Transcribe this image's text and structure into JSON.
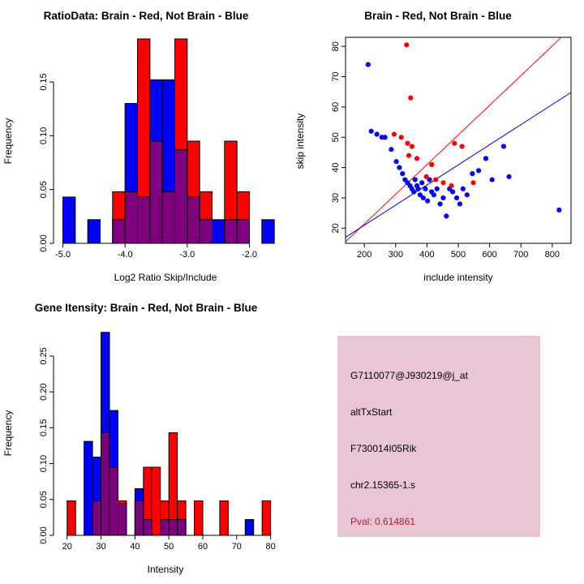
{
  "figure": {
    "background": "#FFFFFF"
  },
  "colors": {
    "red": "#FF0000",
    "blue": "#0000FF",
    "overlap": "#7F007F",
    "axis": "#000000",
    "info_bg": "#EAC5D5",
    "pval_text": "#B22222"
  },
  "info": {
    "probe_id": "G7110077@J930219@j_at",
    "event_type": "altTxStart",
    "gene_symbol": "F730014I05Rik",
    "location": "chr2.15365-1.s",
    "pval": "Pval: 0.614861"
  },
  "chart_data": [
    {
      "id": "ratio_histogram",
      "type": "bar",
      "title": "RatioData: Brain - Red, Not Brain - Blue",
      "xlabel": "Log2 Ratio Skip/Include",
      "ylabel": "Frequency",
      "xlim": [
        -5.15,
        -1.55
      ],
      "ylim": [
        0,
        0.19
      ],
      "xticks": [
        -5.0,
        -4.0,
        -3.0,
        -2.0
      ],
      "xtick_labels": [
        "-5.0",
        "-4.0",
        "-3.0",
        "-2.0"
      ],
      "yticks": [
        0,
        0.05,
        0.1,
        0.15
      ],
      "ytick_labels": [
        "0.00",
        "0.05",
        "0.10",
        "0.15"
      ],
      "bin_width": 0.2,
      "grid": false,
      "legend": "colors encoded in title",
      "series": [
        {
          "name": "Not Brain",
          "color_key": "blue",
          "bins": [
            [
              -5.0,
              0.043
            ],
            [
              -4.6,
              0.022
            ],
            [
              -4.2,
              0.022
            ],
            [
              -4.0,
              0.13
            ],
            [
              -3.8,
              0.043
            ],
            [
              -3.6,
              0.152
            ],
            [
              -3.4,
              0.152
            ],
            [
              -3.2,
              0.087
            ],
            [
              -3.0,
              0.043
            ],
            [
              -2.8,
              0.022
            ],
            [
              -2.6,
              0.022
            ],
            [
              -2.4,
              0.022
            ],
            [
              -2.2,
              0.022
            ],
            [
              -1.8,
              0.022
            ]
          ]
        },
        {
          "name": "Brain",
          "color_key": "red",
          "bins": [
            [
              -4.2,
              0.048
            ],
            [
              -4.0,
              0.048
            ],
            [
              -3.8,
              0.19
            ],
            [
              -3.6,
              0.095
            ],
            [
              -3.4,
              0.048
            ],
            [
              -3.2,
              0.19
            ],
            [
              -3.0,
              0.095
            ],
            [
              -2.8,
              0.048
            ],
            [
              -2.4,
              0.095
            ],
            [
              -2.2,
              0.048
            ]
          ]
        }
      ]
    },
    {
      "id": "intensity_scatter",
      "type": "scatter",
      "title": "Brain - Red, Not Brain - Blue",
      "xlabel": "include intensity",
      "ylabel": "skip intensity",
      "xlim": [
        140,
        860
      ],
      "ylim": [
        15,
        83
      ],
      "xticks": [
        200,
        300,
        400,
        500,
        600,
        700,
        800
      ],
      "yticks": [
        20,
        30,
        40,
        50,
        60,
        70,
        80
      ],
      "grid": false,
      "series": [
        {
          "name": "Not Brain",
          "color_key": "blue",
          "points": [
            [
              212,
              74
            ],
            [
              222,
              52
            ],
            [
              240,
              51
            ],
            [
              256,
              50
            ],
            [
              266,
              50
            ],
            [
              286,
              46
            ],
            [
              302,
              42
            ],
            [
              312,
              40
            ],
            [
              322,
              38
            ],
            [
              330,
              36
            ],
            [
              338,
              35
            ],
            [
              346,
              34
            ],
            [
              352,
              33
            ],
            [
              358,
              32
            ],
            [
              362,
              36
            ],
            [
              368,
              34
            ],
            [
              372,
              33
            ],
            [
              378,
              31
            ],
            [
              384,
              35
            ],
            [
              388,
              30
            ],
            [
              395,
              33
            ],
            [
              402,
              29
            ],
            [
              408,
              36
            ],
            [
              415,
              32
            ],
            [
              422,
              31
            ],
            [
              432,
              33
            ],
            [
              442,
              28
            ],
            [
              452,
              30
            ],
            [
              462,
              24
            ],
            [
              472,
              33
            ],
            [
              482,
              32
            ],
            [
              495,
              30
            ],
            [
              505,
              28
            ],
            [
              515,
              33
            ],
            [
              528,
              31
            ],
            [
              545,
              38
            ],
            [
              565,
              39
            ],
            [
              588,
              43
            ],
            [
              608,
              36
            ],
            [
              645,
              47
            ],
            [
              662,
              37
            ],
            [
              822,
              26
            ]
          ]
        },
        {
          "name": "Brain",
          "color_key": "red",
          "points": [
            [
              335,
              80.5
            ],
            [
              348,
              63
            ],
            [
              295,
              51
            ],
            [
              318,
              50
            ],
            [
              338,
              48
            ],
            [
              352,
              47
            ],
            [
              342,
              44
            ],
            [
              368,
              43
            ],
            [
              398,
              37
            ],
            [
              415,
              41
            ],
            [
              428,
              36
            ],
            [
              452,
              35
            ],
            [
              478,
              34
            ],
            [
              488,
              48
            ],
            [
              512,
              47
            ],
            [
              548,
              35
            ]
          ]
        }
      ],
      "lines": [
        {
          "color_key": "red",
          "x1": 140,
          "y1": 15.5,
          "x2": 829,
          "y2": 83
        },
        {
          "color_key": "blue",
          "x1": 140,
          "y1": 17.0,
          "x2": 860,
          "y2": 64.8
        }
      ]
    },
    {
      "id": "gene_intensity_histogram",
      "type": "bar",
      "title": "Gene Itensity: Brain - Red, Not Brain - Blue",
      "xlabel": "Intensity",
      "ylabel": "Frequency",
      "xlim": [
        16,
        82
      ],
      "ylim": [
        0,
        0.285
      ],
      "xticks": [
        20,
        30,
        40,
        50,
        60,
        70,
        80
      ],
      "xtick_labels": [
        "20",
        "30",
        "40",
        "50",
        "60",
        "70",
        "80"
      ],
      "yticks": [
        0,
        0.05,
        0.1,
        0.15,
        0.2,
        0.25
      ],
      "ytick_labels": [
        "0.00",
        "0.05",
        "0.10",
        "0.15",
        "0.20",
        "0.25"
      ],
      "bin_width": 2.5,
      "grid": false,
      "series": [
        {
          "name": "Not Brain",
          "color_key": "blue",
          "bins": [
            [
              25,
              0.131
            ],
            [
              27.5,
              0.109
            ],
            [
              30,
              0.283
            ],
            [
              32.5,
              0.174
            ],
            [
              35,
              0.044
            ],
            [
              40,
              0.065
            ],
            [
              42.5,
              0.022
            ],
            [
              47.5,
              0.022
            ],
            [
              50,
              0.022
            ],
            [
              52.5,
              0.022
            ],
            [
              72.5,
              0.022
            ]
          ]
        },
        {
          "name": "Brain",
          "color_key": "red",
          "bins": [
            [
              20,
              0.048
            ],
            [
              27.5,
              0.048
            ],
            [
              30,
              0.143
            ],
            [
              32.5,
              0.095
            ],
            [
              35,
              0.048
            ],
            [
              40,
              0.048
            ],
            [
              42.5,
              0.095
            ],
            [
              45,
              0.095
            ],
            [
              47.5,
              0.048
            ],
            [
              50,
              0.143
            ],
            [
              52.5,
              0.048
            ],
            [
              57.5,
              0.048
            ],
            [
              65,
              0.048
            ],
            [
              77.5,
              0.048
            ]
          ]
        }
      ]
    }
  ]
}
